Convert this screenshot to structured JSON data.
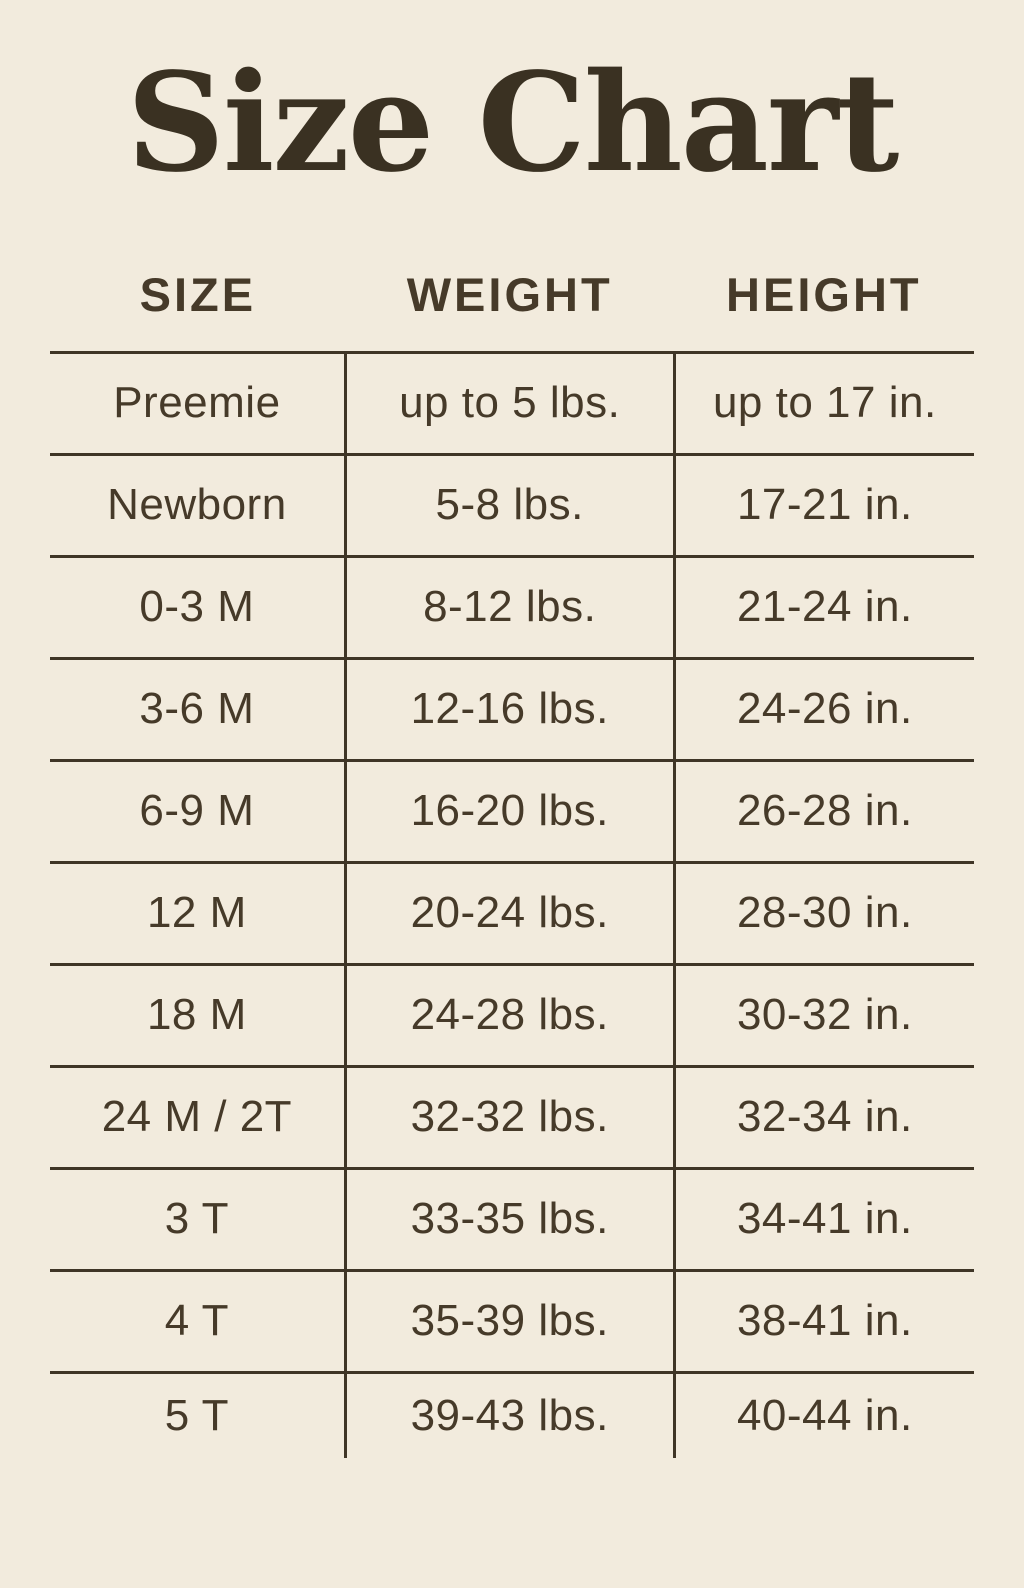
{
  "title": "Size Chart",
  "colors": {
    "background": "#f2ebdd",
    "text": "#463a29",
    "lines": "#3f3526",
    "title_text": "#3a3122"
  },
  "chart_data": {
    "type": "table",
    "title": "Size Chart",
    "columns": [
      "SIZE",
      "WEIGHT",
      "HEIGHT"
    ],
    "rows": [
      [
        "Preemie",
        "up to 5 lbs.",
        "up to 17 in."
      ],
      [
        "Newborn",
        "5-8 lbs.",
        "17-21 in."
      ],
      [
        "0-3 M",
        "8-12 lbs.",
        "21-24 in."
      ],
      [
        "3-6 M",
        "12-16 lbs.",
        "24-26 in."
      ],
      [
        "6-9 M",
        "16-20 lbs.",
        "26-28 in."
      ],
      [
        "12 M",
        "20-24 lbs.",
        "28-30 in."
      ],
      [
        "18 M",
        "24-28 lbs.",
        "30-32 in."
      ],
      [
        "24 M / 2T",
        "32-32 lbs.",
        "32-34 in."
      ],
      [
        "3 T",
        "33-35 lbs.",
        "34-41 in."
      ],
      [
        "4 T",
        "35-39 lbs.",
        "38-41 in."
      ],
      [
        "5 T",
        "39-43 lbs.",
        "40-44 in."
      ]
    ],
    "layout": {
      "grid": "horizontal rules between rows, two vertical rules between columns, no outer border, no rule under last row"
    }
  }
}
